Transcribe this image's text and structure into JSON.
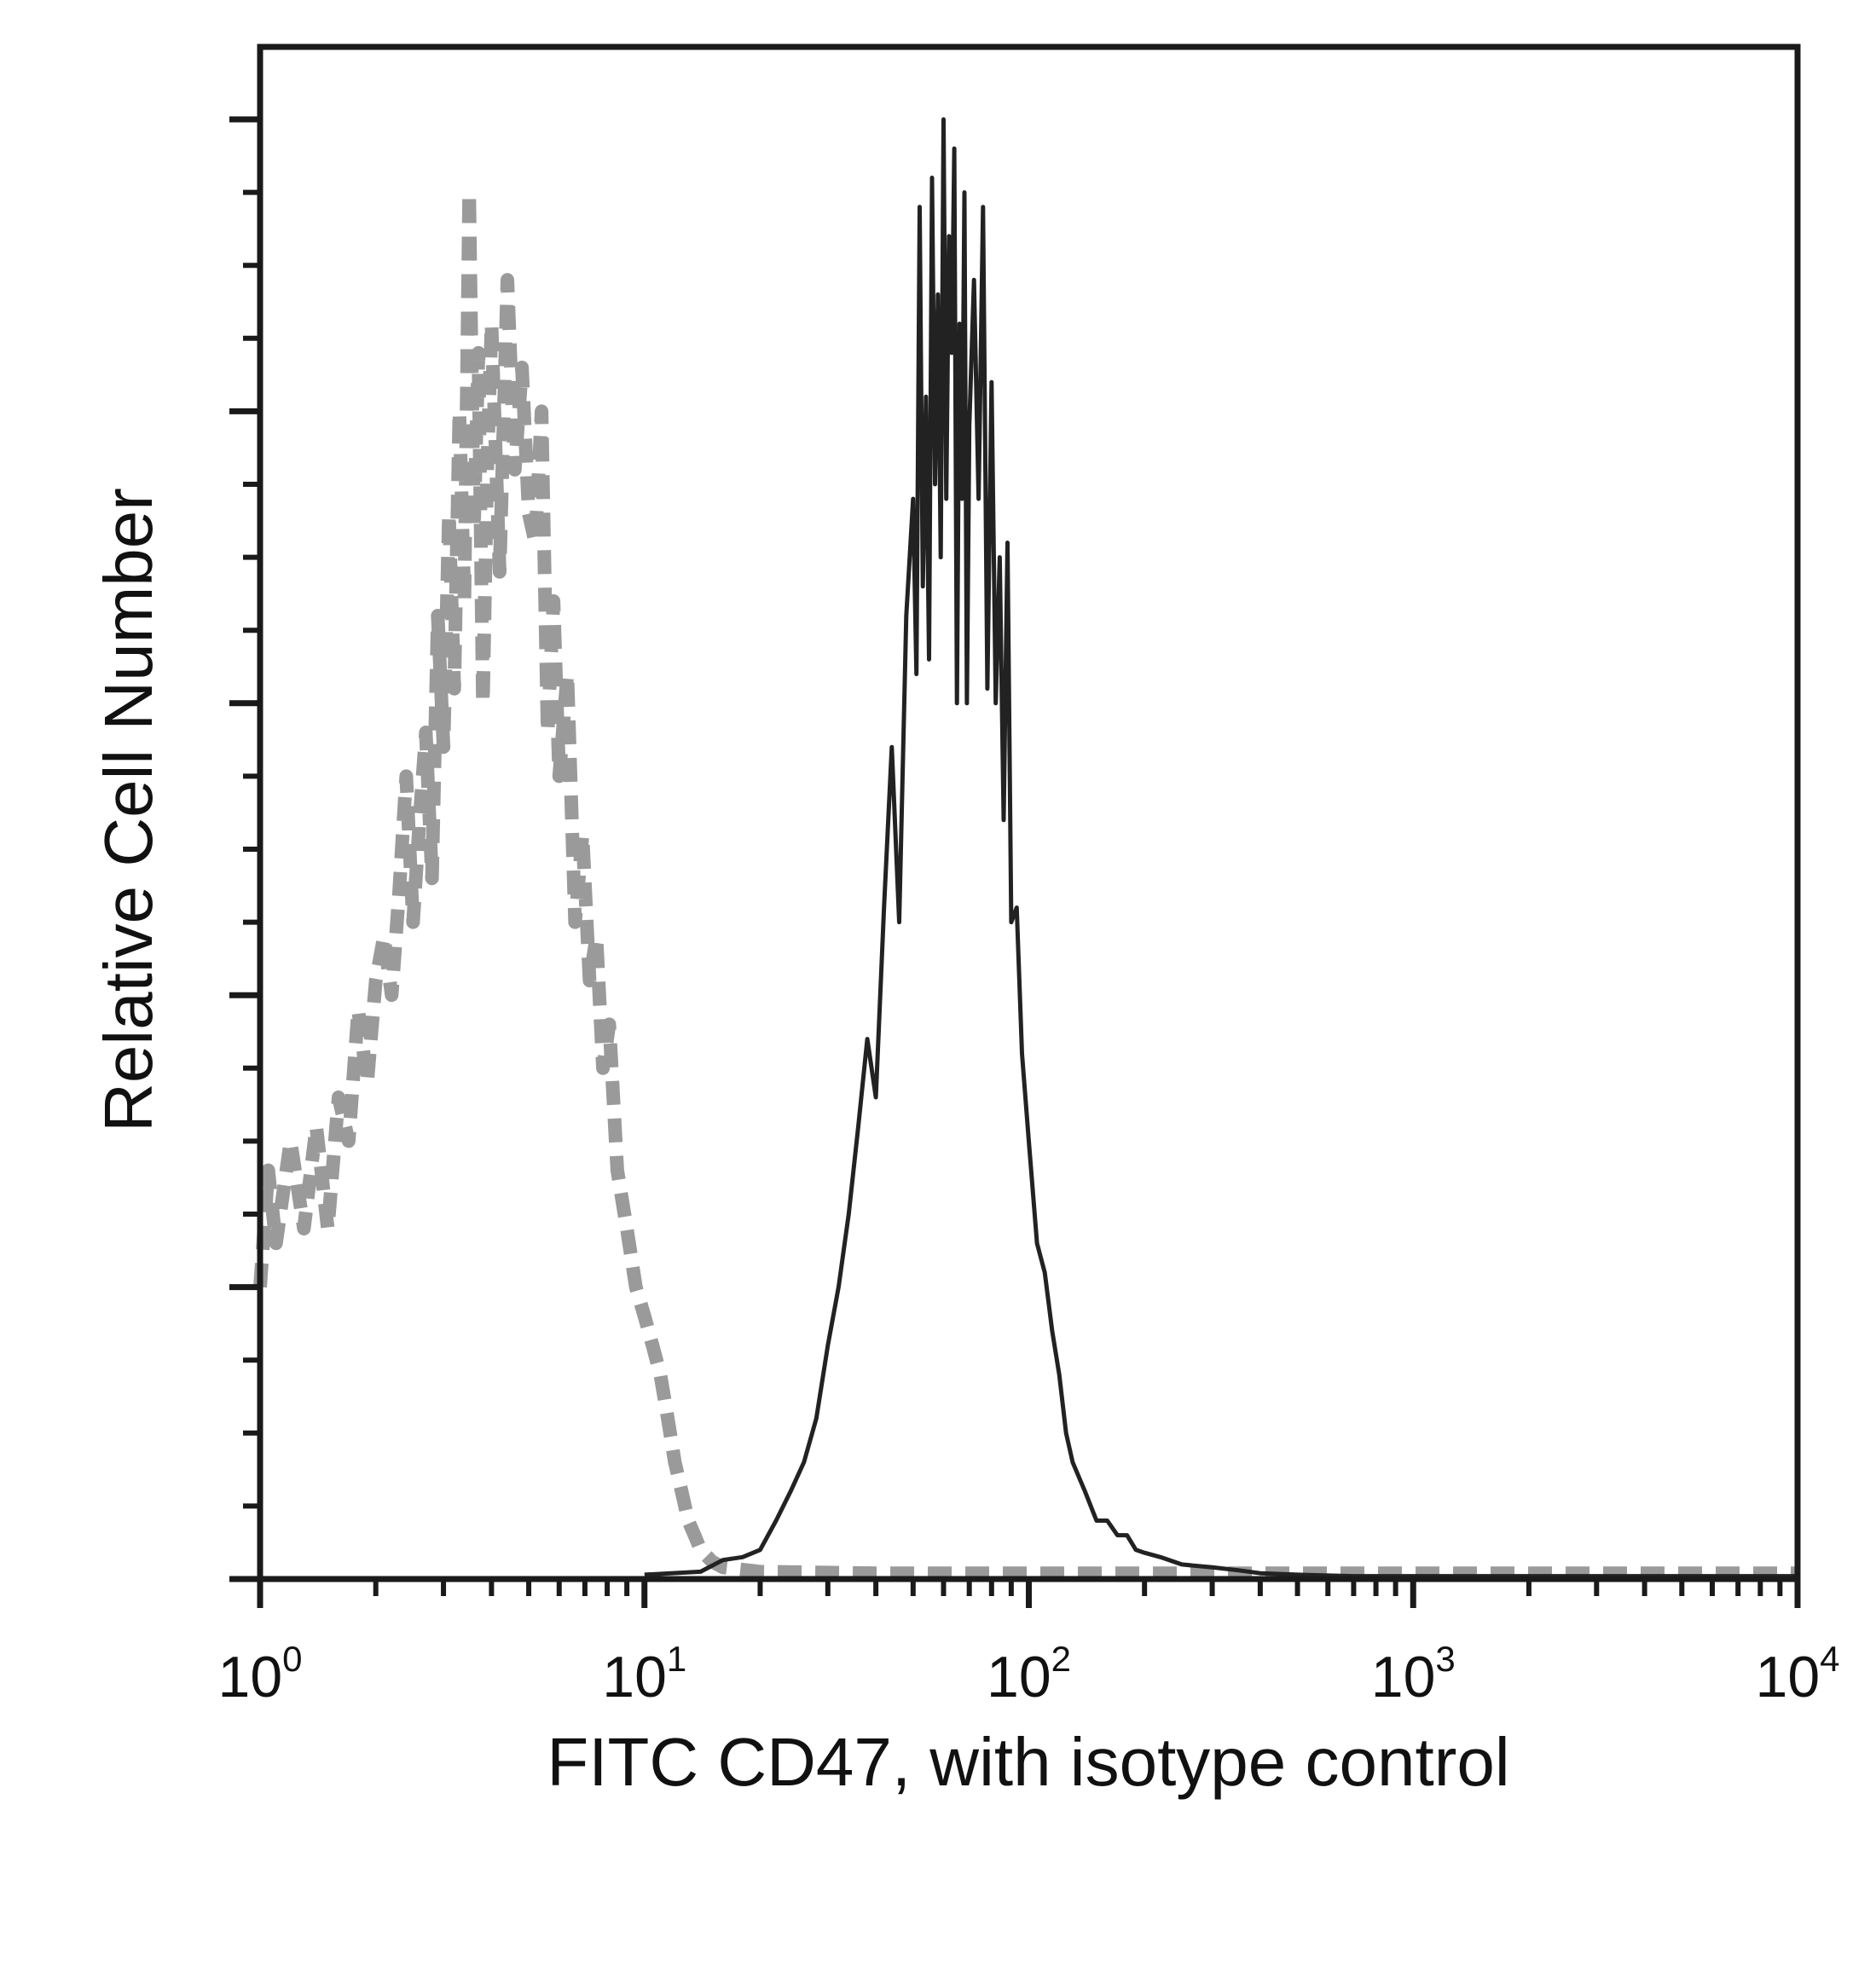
{
  "chart_data": {
    "type": "line",
    "title": "",
    "xlabel": "FITC CD47, with isotype control",
    "ylabel": "Relative Cell Number",
    "x_scale": "log",
    "xlim": [
      1,
      10000
    ],
    "ylim": [
      0,
      100
    ],
    "grid": false,
    "legend": "none",
    "x_ticks": [
      {
        "base": "10",
        "exp": "0"
      },
      {
        "base": "10",
        "exp": "1"
      },
      {
        "base": "10",
        "exp": "2"
      },
      {
        "base": "10",
        "exp": "3"
      },
      {
        "base": "10",
        "exp": "4"
      }
    ],
    "series": [
      {
        "color": "#9a9a9a",
        "style": "dashed",
        "x": [
          1.0,
          1.05,
          1.1,
          1.2,
          1.3,
          1.4,
          1.5,
          1.6,
          1.7,
          1.8,
          1.9,
          2.0,
          2.1,
          2.2,
          2.3,
          2.4,
          2.5,
          2.6,
          2.7,
          2.8,
          2.9,
          3.0,
          3.1,
          3.2,
          3.3,
          3.4,
          3.5,
          3.6,
          3.7,
          3.8,
          3.9,
          4.0,
          4.2,
          4.4,
          4.6,
          4.8,
          5.0,
          5.2,
          5.4,
          5.6,
          5.8,
          6.0,
          6.3,
          6.6,
          6.9,
          7.2,
          7.5,
          7.8,
          8.1,
          8.5,
          9.0,
          9.5,
          10.0,
          10.5,
          11.0,
          11.5,
          12.0,
          12.5,
          13.0,
          13.5,
          14.0,
          15.0,
          16.0,
          20.0,
          40.0,
          60.0,
          100.0,
          1000.0,
          10000.0
        ],
        "y": [
          20,
          28,
          23,
          30,
          24,
          31,
          24,
          33,
          30,
          39,
          34,
          41,
          44,
          40,
          47,
          55,
          45,
          52,
          58,
          48,
          66,
          57,
          73,
          61,
          80,
          67,
          95,
          72,
          84,
          60,
          76,
          86,
          69,
          89,
          76,
          83,
          73,
          71,
          80,
          58,
          67,
          55,
          62,
          45,
          51,
          41,
          44,
          35,
          38,
          28,
          24,
          20,
          18,
          16,
          14,
          11,
          8,
          6,
          4,
          3,
          2,
          1.2,
          0.8,
          0.5,
          0.4,
          0.4,
          0.4,
          0.4,
          0.4
        ]
      },
      {
        "color": "#222222",
        "style": "solid",
        "x": [
          10.0,
          14.0,
          16.0,
          18.0,
          20.0,
          22.0,
          24.0,
          26.0,
          28.0,
          30.0,
          32.0,
          34.0,
          36.0,
          38.0,
          40.0,
          42.0,
          44.0,
          46.0,
          48.0,
          50.0,
          51.0,
          52.0,
          53.0,
          54.0,
          55.0,
          56.0,
          57.0,
          58.0,
          59.0,
          60.0,
          61.0,
          62.0,
          63.0,
          64.0,
          65.0,
          66.0,
          67.0,
          68.0,
          69.0,
          70.0,
          72.0,
          74.0,
          76.0,
          78.0,
          80.0,
          82.0,
          84.0,
          86.0,
          88.0,
          90.0,
          93.0,
          96.0,
          100.0,
          105.0,
          110.0,
          115.0,
          120.0,
          125.0,
          130.0,
          140.0,
          150.0,
          160.0,
          170.0,
          180.0,
          190.0,
          200.0,
          220.0,
          250.0,
          300.0,
          350.0,
          400.0,
          500.0,
          700.0,
          1000.0,
          10000.0
        ],
        "y": [
          0.3,
          0.5,
          1.3,
          1.5,
          2,
          4,
          6,
          8,
          11,
          16,
          20,
          25,
          31,
          37,
          33,
          46,
          57,
          45,
          66,
          74,
          62,
          94,
          68,
          81,
          63,
          96,
          75,
          88,
          70,
          100,
          74,
          92,
          84,
          98,
          60,
          86,
          74,
          95,
          60,
          79,
          89,
          74,
          94,
          61,
          82,
          60,
          70,
          52,
          71,
          45,
          46,
          36,
          30,
          23,
          21,
          17,
          14,
          10,
          8,
          6,
          4,
          4,
          3,
          3,
          2,
          1.8,
          1.5,
          1.0,
          0.8,
          0.6,
          0.4,
          0.3,
          0.2,
          0.2,
          0.2
        ]
      }
    ]
  }
}
